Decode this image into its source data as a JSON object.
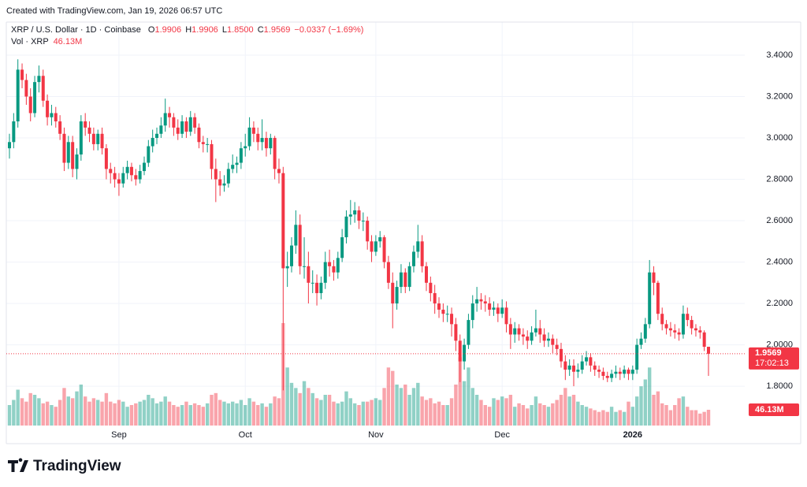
{
  "created": "Created with TradingView.com, Jan 19, 2026 06:57 UTC",
  "header": {
    "symbol": "XRP / U.S. Dollar · 1D · Coinbase",
    "ohlc": [
      {
        "label": "O",
        "value": "1.9906"
      },
      {
        "label": "H",
        "value": "1.9906"
      },
      {
        "label": "L",
        "value": "1.8500"
      },
      {
        "label": "C",
        "value": "1.9569"
      }
    ],
    "change": "−0.0337 (−1.69%)",
    "vol_label": "Vol · XRP",
    "vol_value": "46.13M"
  },
  "logo": "TradingView",
  "chart_data": {
    "type": "candlestick",
    "categories": [
      null,
      null,
      null,
      null,
      null,
      null,
      null,
      null,
      null,
      null,
      null,
      null,
      null,
      null,
      null,
      null,
      null,
      null,
      null,
      null,
      null,
      null,
      null,
      null,
      null,
      null,
      "Sep",
      null,
      null,
      null,
      null,
      null,
      null,
      null,
      null,
      null,
      null,
      null,
      null,
      null,
      null,
      null,
      null,
      null,
      null,
      null,
      null,
      null,
      null,
      null,
      null,
      null,
      null,
      null,
      null,
      null,
      "Oct",
      null,
      null,
      null,
      null,
      null,
      null,
      null,
      null,
      null,
      null,
      null,
      null,
      null,
      null,
      null,
      null,
      null,
      null,
      null,
      null,
      null,
      null,
      null,
      null,
      null,
      null,
      null,
      null,
      null,
      null,
      "Nov",
      null,
      null,
      null,
      null,
      null,
      null,
      null,
      null,
      null,
      null,
      null,
      null,
      null,
      null,
      null,
      null,
      null,
      null,
      null,
      null,
      null,
      null,
      null,
      null,
      null,
      null,
      null,
      null,
      null,
      "Dec",
      null,
      null,
      null,
      null,
      null,
      null,
      null,
      null,
      null,
      null,
      null,
      null,
      null,
      null,
      null,
      null,
      null,
      null,
      null,
      null,
      null,
      null,
      null,
      null,
      null,
      null,
      null,
      null,
      null,
      null,
      "2026",
      null,
      null,
      null,
      null,
      null,
      null,
      null,
      null,
      null,
      null,
      null,
      null,
      null,
      null,
      null,
      null,
      null,
      null
    ],
    "open": [
      2.95,
      2.98,
      3.08,
      3.33,
      3.28,
      3.2,
      3.12,
      3.27,
      3.3,
      3.18,
      3.1,
      3.12,
      3.08,
      3.02,
      2.88,
      2.98,
      2.85,
      2.92,
      3.08,
      3.05,
      3.02,
      2.97,
      3.02,
      2.95,
      2.85,
      2.83,
      2.8,
      2.78,
      2.83,
      2.86,
      2.82,
      2.8,
      2.84,
      2.88,
      2.96,
      3.0,
      3.02,
      3.06,
      3.12,
      3.1,
      3.05,
      3.02,
      3.08,
      3.03,
      3.1,
      3.05,
      2.98,
      2.97,
      2.97,
      2.85,
      2.8,
      2.77,
      2.78,
      2.85,
      2.87,
      2.88,
      2.95,
      2.96,
      3.05,
      3.02,
      2.98,
      3.0,
      2.95,
      3.0,
      2.85,
      2.83,
      2.37,
      2.38,
      2.48,
      2.58,
      2.38,
      2.38,
      2.3,
      2.3,
      2.25,
      2.3,
      2.4,
      2.38,
      2.35,
      2.42,
      2.52,
      2.62,
      2.63,
      2.65,
      2.6,
      2.6,
      2.5,
      2.45,
      2.5,
      2.52,
      2.4,
      2.3,
      2.2,
      2.28,
      2.35,
      2.28,
      2.38,
      2.45,
      2.5,
      2.38,
      2.3,
      2.25,
      2.2,
      2.17,
      2.15,
      2.15,
      2.1,
      2.02,
      1.92,
      2.0,
      2.12,
      2.2,
      2.22,
      2.21,
      2.2,
      2.17,
      2.18,
      2.15,
      2.18,
      2.1,
      2.05,
      2.08,
      2.05,
      2.04,
      2.02,
      2.06,
      2.08,
      2.05,
      2.02,
      2.03,
      2.0,
      1.98,
      1.92,
      1.88,
      1.9,
      1.87,
      1.88,
      1.92,
      1.94,
      1.9,
      1.88,
      1.87,
      1.85,
      1.84,
      1.86,
      1.87,
      1.86,
      1.88,
      1.86,
      1.88,
      2.0,
      2.03,
      2.1,
      2.35,
      2.3,
      2.15,
      2.1,
      2.08,
      2.07,
      2.06,
      2.05,
      2.15,
      2.12,
      2.08,
      2.07,
      2.06,
      1.9906
    ],
    "high": [
      3.02,
      3.12,
      3.38,
      3.36,
      3.31,
      3.24,
      3.3,
      3.35,
      3.33,
      3.21,
      3.16,
      3.15,
      3.11,
      3.05,
      3.01,
      3.01,
      2.95,
      3.11,
      3.12,
      3.08,
      3.05,
      3.04,
      3.05,
      2.97,
      2.88,
      2.86,
      2.83,
      2.86,
      2.89,
      2.88,
      2.85,
      2.87,
      2.91,
      2.99,
      3.04,
      3.05,
      3.1,
      3.19,
      3.15,
      3.12,
      3.09,
      3.11,
      3.1,
      3.13,
      3.12,
      3.07,
      3.01,
      3.0,
      2.99,
      2.9,
      2.84,
      2.82,
      2.88,
      2.92,
      2.91,
      2.98,
      3.02,
      3.1,
      3.08,
      3.05,
      3.09,
      3.03,
      3.02,
      3.01,
      2.9,
      2.86,
      2.45,
      2.52,
      2.65,
      2.63,
      2.52,
      2.45,
      2.36,
      2.34,
      2.33,
      2.45,
      2.46,
      2.41,
      2.45,
      2.56,
      2.65,
      2.7,
      2.69,
      2.67,
      2.64,
      2.62,
      2.53,
      2.53,
      2.55,
      2.53,
      2.43,
      2.35,
      2.31,
      2.39,
      2.37,
      2.4,
      2.48,
      2.58,
      2.53,
      2.4,
      2.33,
      2.29,
      2.23,
      2.2,
      2.19,
      2.18,
      2.13,
      2.05,
      2.03,
      2.15,
      2.24,
      2.28,
      2.25,
      2.24,
      2.23,
      2.21,
      2.2,
      2.22,
      2.21,
      2.13,
      2.11,
      2.1,
      2.08,
      2.07,
      2.09,
      2.17,
      2.12,
      2.08,
      2.06,
      2.05,
      2.03,
      2.01,
      1.95,
      1.93,
      1.93,
      1.91,
      1.95,
      1.97,
      1.96,
      1.92,
      1.9,
      1.89,
      1.87,
      1.88,
      1.9,
      1.89,
      1.9,
      1.89,
      1.9,
      2.03,
      2.06,
      2.13,
      2.41,
      2.38,
      2.31,
      2.18,
      2.12,
      2.11,
      2.1,
      2.08,
      2.19,
      2.18,
      2.14,
      2.1,
      2.09,
      2.07,
      1.9906
    ],
    "low": [
      2.9,
      2.95,
      3.05,
      3.24,
      3.16,
      3.08,
      3.1,
      3.22,
      3.15,
      3.06,
      3.06,
      3.05,
      2.99,
      2.84,
      2.85,
      2.81,
      2.8,
      2.89,
      3.01,
      2.98,
      2.94,
      2.94,
      2.92,
      2.8,
      2.78,
      2.76,
      2.72,
      2.76,
      2.8,
      2.79,
      2.77,
      2.78,
      2.82,
      2.86,
      2.93,
      2.97,
      3.0,
      3.03,
      3.05,
      3.01,
      2.99,
      3.0,
      3.0,
      3.01,
      3.02,
      2.95,
      2.93,
      2.93,
      2.8,
      2.69,
      2.72,
      2.74,
      2.76,
      2.83,
      2.83,
      2.85,
      2.91,
      2.94,
      2.98,
      2.94,
      2.94,
      2.91,
      2.92,
      2.8,
      2.78,
      1.78,
      2.28,
      2.35,
      2.44,
      2.34,
      2.32,
      2.2,
      2.25,
      2.19,
      2.22,
      2.27,
      2.33,
      2.31,
      2.32,
      2.4,
      2.49,
      2.58,
      2.59,
      2.56,
      2.55,
      2.46,
      2.4,
      2.43,
      2.47,
      2.37,
      2.27,
      2.08,
      2.17,
      2.25,
      2.25,
      2.26,
      2.35,
      2.42,
      2.35,
      2.26,
      2.21,
      2.15,
      2.13,
      2.11,
      2.11,
      2.04,
      1.97,
      1.82,
      1.88,
      1.98,
      2.08,
      2.16,
      2.17,
      2.16,
      2.14,
      2.14,
      2.11,
      2.13,
      2.06,
      1.98,
      2.01,
      2.02,
      2.0,
      1.98,
      2.0,
      2.04,
      2.01,
      1.99,
      1.99,
      1.96,
      1.95,
      1.89,
      1.83,
      1.85,
      1.8,
      1.84,
      1.86,
      1.9,
      1.87,
      1.85,
      1.84,
      1.83,
      1.82,
      1.82,
      1.84,
      1.83,
      1.84,
      1.83,
      1.83,
      1.86,
      1.98,
      2.01,
      2.08,
      2.24,
      2.12,
      2.07,
      2.05,
      2.04,
      2.03,
      2.02,
      2.03,
      2.09,
      2.05,
      2.04,
      2.03,
      1.97,
      1.85
    ],
    "close": [
      2.98,
      3.08,
      3.33,
      3.28,
      3.2,
      3.12,
      3.27,
      3.3,
      3.18,
      3.1,
      3.12,
      3.08,
      3.02,
      2.88,
      2.98,
      2.85,
      2.92,
      3.08,
      3.05,
      3.02,
      2.97,
      3.02,
      2.95,
      2.85,
      2.83,
      2.8,
      2.78,
      2.83,
      2.86,
      2.82,
      2.8,
      2.84,
      2.88,
      2.96,
      3.0,
      3.02,
      3.06,
      3.12,
      3.1,
      3.05,
      3.02,
      3.08,
      3.03,
      3.1,
      3.05,
      2.98,
      2.97,
      2.97,
      2.85,
      2.8,
      2.77,
      2.78,
      2.85,
      2.87,
      2.88,
      2.95,
      2.96,
      3.05,
      3.02,
      2.98,
      3.0,
      2.95,
      3.0,
      2.85,
      2.83,
      2.37,
      2.38,
      2.48,
      2.58,
      2.38,
      2.38,
      2.3,
      2.3,
      2.25,
      2.3,
      2.4,
      2.38,
      2.35,
      2.42,
      2.52,
      2.62,
      2.63,
      2.65,
      2.6,
      2.6,
      2.5,
      2.45,
      2.5,
      2.52,
      2.4,
      2.3,
      2.2,
      2.28,
      2.35,
      2.28,
      2.38,
      2.45,
      2.5,
      2.38,
      2.3,
      2.25,
      2.2,
      2.17,
      2.15,
      2.15,
      2.1,
      2.02,
      1.92,
      2.0,
      2.12,
      2.2,
      2.22,
      2.21,
      2.2,
      2.17,
      2.18,
      2.15,
      2.18,
      2.1,
      2.05,
      2.08,
      2.05,
      2.04,
      2.02,
      2.06,
      2.08,
      2.05,
      2.02,
      2.03,
      2.0,
      1.98,
      1.92,
      1.88,
      1.9,
      1.87,
      1.88,
      1.92,
      1.94,
      1.9,
      1.88,
      1.87,
      1.85,
      1.84,
      1.86,
      1.87,
      1.86,
      1.88,
      1.86,
      1.88,
      2.0,
      2.03,
      2.1,
      2.35,
      2.3,
      2.15,
      2.1,
      2.08,
      2.07,
      2.06,
      2.05,
      2.15,
      2.12,
      2.08,
      2.07,
      2.06,
      1.9906,
      1.9569
    ],
    "volume": [
      60,
      75,
      105,
      80,
      70,
      95,
      90,
      80,
      65,
      70,
      60,
      55,
      75,
      110,
      85,
      80,
      100,
      120,
      85,
      70,
      80,
      75,
      70,
      95,
      70,
      65,
      75,
      70,
      55,
      60,
      65,
      70,
      75,
      90,
      80,
      65,
      70,
      85,
      70,
      60,
      55,
      60,
      70,
      60,
      65,
      60,
      55,
      65,
      90,
      95,
      75,
      70,
      65,
      70,
      65,
      75,
      60,
      80,
      70,
      60,
      65,
      55,
      65,
      85,
      80,
      300,
      170,
      125,
      110,
      95,
      130,
      110,
      95,
      80,
      75,
      90,
      90,
      70,
      65,
      70,
      100,
      80,
      65,
      60,
      70,
      70,
      75,
      80,
      75,
      110,
      170,
      160,
      120,
      110,
      120,
      90,
      110,
      125,
      85,
      75,
      80,
      65,
      70,
      60,
      60,
      80,
      120,
      200,
      130,
      170,
      110,
      90,
      75,
      60,
      55,
      80,
      75,
      85,
      80,
      90,
      55,
      65,
      60,
      50,
      60,
      85,
      65,
      60,
      55,
      65,
      75,
      90,
      110,
      85,
      90,
      70,
      60,
      55,
      50,
      45,
      40,
      45,
      40,
      55,
      40,
      45,
      40,
      70,
      55,
      85,
      115,
      135,
      170,
      90,
      100,
      65,
      60,
      45,
      60,
      80,
      85,
      55,
      45,
      45,
      35,
      40,
      46.13
    ],
    "up_color": "#089981",
    "down_color": "#f23645",
    "ylim": [
      1.61,
      3.56
    ],
    "yticks": [
      {
        "value": 1.8,
        "label": "1.8000"
      },
      {
        "value": 2.0,
        "label": "2.0000"
      },
      {
        "value": 2.2,
        "label": "2.2000"
      },
      {
        "value": 2.4,
        "label": "2.4000"
      },
      {
        "value": 2.6,
        "label": "2.6000"
      },
      {
        "value": 2.8,
        "label": "2.8000"
      },
      {
        "value": 3.0,
        "label": "3.0000"
      },
      {
        "value": 3.2,
        "label": "3.2000"
      },
      {
        "value": 3.4,
        "label": "3.4000"
      }
    ],
    "grid": true,
    "countdown": "17:02:13"
  }
}
